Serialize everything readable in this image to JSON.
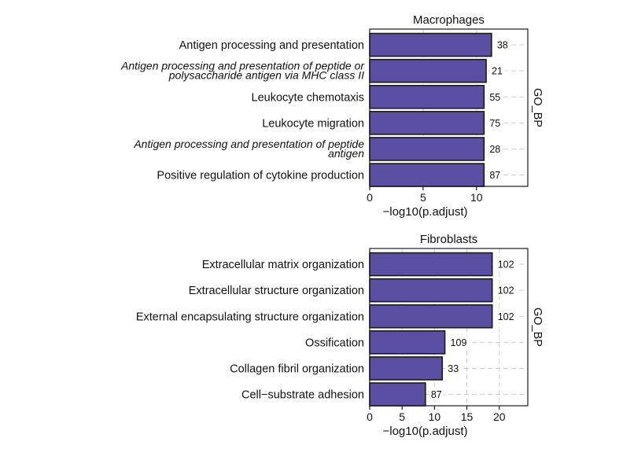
{
  "colors": {
    "bar": "#5b4fa3",
    "bar_stroke": "#1a1a1a",
    "grid": "#cfcfcf",
    "frame": "#1a1a1a"
  },
  "chart_data": [
    {
      "type": "bar",
      "orientation": "horizontal",
      "title": "Macrophages",
      "xlabel": "−log10(p.adjust)",
      "facet_label": "GO_BP",
      "xlim": [
        0,
        14.8
      ],
      "xticks": [
        0,
        5,
        10
      ],
      "grid": "dashed horizontal",
      "categories": [
        {
          "label": "Antigen processing and presentation",
          "lines": [
            "Antigen processing and presentation"
          ],
          "italic": false
        },
        {
          "label": "Antigen processing and presentation of peptide or polysaccharide antigen via MHC class II",
          "lines": [
            "Antigen processing and presentation of peptide or",
            "polysaccharide antigen via MHC class II"
          ],
          "italic": true
        },
        {
          "label": "Leukocyte chemotaxis",
          "lines": [
            "Leukocyte chemotaxis"
          ],
          "italic": false
        },
        {
          "label": "Leukocyte migration",
          "lines": [
            "Leukocyte migration"
          ],
          "italic": false
        },
        {
          "label": "Antigen processing and presentation of peptide antigen",
          "lines": [
            "Antigen processing and presentation of peptide",
            "antigen"
          ],
          "italic": true
        },
        {
          "label": "Positive regulation of cytokine production",
          "lines": [
            "Positive regulation of cytokine production"
          ],
          "italic": false
        }
      ],
      "values": [
        11.4,
        10.9,
        10.7,
        10.7,
        10.7,
        10.7
      ],
      "counts": [
        "38",
        "21",
        "55",
        "75",
        "28",
        "87"
      ]
    },
    {
      "type": "bar",
      "orientation": "horizontal",
      "title": "Fibroblasts",
      "xlabel": "−log10(p.adjust)",
      "facet_label": "GO_BP",
      "xlim": [
        0,
        24.4
      ],
      "xticks": [
        0,
        5,
        10,
        15,
        20
      ],
      "grid": "dashed horizontal",
      "categories": [
        {
          "label": "Extracellular matrix organization",
          "lines": [
            "Extracellular matrix organization"
          ],
          "italic": false
        },
        {
          "label": "Extracellular structure organization",
          "lines": [
            "Extracellular structure organization"
          ],
          "italic": false
        },
        {
          "label": "External encapsulating structure organization",
          "lines": [
            "External encapsulating structure organization"
          ],
          "italic": false
        },
        {
          "label": "Ossification",
          "lines": [
            "Ossification"
          ],
          "italic": false
        },
        {
          "label": "Collagen fibril organization",
          "lines": [
            "Collagen fibril organization"
          ],
          "italic": false
        },
        {
          "label": "Cell-substrate adhesion",
          "lines": [
            "Cell−substrate adhesion"
          ],
          "italic": false
        }
      ],
      "values": [
        18.9,
        18.9,
        18.9,
        11.6,
        11.2,
        8.6
      ],
      "counts": [
        "102",
        "102",
        "102",
        "109",
        "33",
        "87"
      ]
    }
  ]
}
